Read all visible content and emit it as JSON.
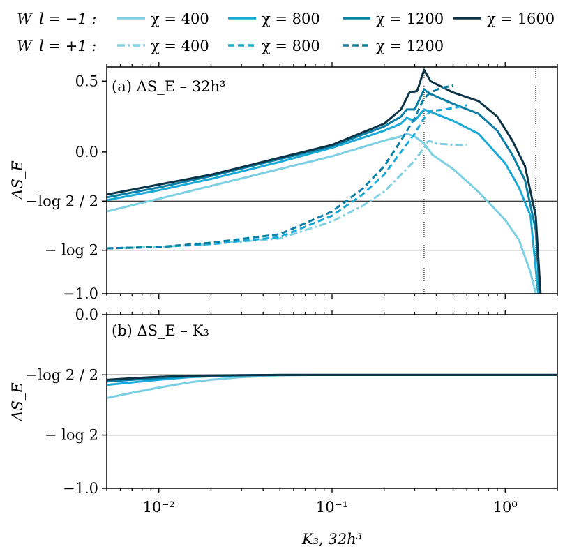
{
  "legend": {
    "rows": [
      {
        "label": "W_l = −1 :",
        "style": "solid"
      },
      {
        "label": "W_l = +1 :",
        "style": "dashed"
      }
    ],
    "entries": [
      {
        "row": 0,
        "text": "χ = 400",
        "color": "#7dd0e4",
        "dash": "solid"
      },
      {
        "row": 0,
        "text": "χ = 800",
        "color": "#19aad8",
        "dash": "solid"
      },
      {
        "row": 0,
        "text": "χ = 1200",
        "color": "#0a7ea4",
        "dash": "solid"
      },
      {
        "row": 0,
        "text": "χ = 1600",
        "color": "#0c3346",
        "dash": "solid"
      },
      {
        "row": 1,
        "text": "χ = 400",
        "color": "#7dd0e4",
        "dash": "dashdot"
      },
      {
        "row": 1,
        "text": "χ = 800",
        "color": "#19aad8",
        "dash": "dashed"
      },
      {
        "row": 1,
        "text": "χ = 1200",
        "color": "#0a7ea4",
        "dash": "dashed"
      }
    ]
  },
  "chart_data": [
    {
      "type": "line",
      "panel_label": "(a) ΔS_E – 32h³",
      "ylabel": "ΔS_E",
      "xscale": "log",
      "xlim": [
        0.005,
        2.0
      ],
      "ylim": [
        -1.0,
        0.6
      ],
      "yticks": [
        {
          "value": 0.5,
          "label": "0.5"
        },
        {
          "value": 0.0,
          "label": "0.0"
        },
        {
          "value": -0.3466,
          "label": "−log 2 / 2"
        },
        {
          "value": -0.6931,
          "label": "− log 2"
        },
        {
          "value": -1.0,
          "label": "−1.0"
        }
      ],
      "hlines": [
        -0.3466,
        -0.6931
      ],
      "vlines": [
        0.34,
        1.5
      ],
      "series": [
        {
          "name": "W_l = −1, χ = 400",
          "color": "#7dd0e4",
          "dash": "solid",
          "x": [
            0.005,
            0.01,
            0.02,
            0.05,
            0.1,
            0.2,
            0.25,
            0.27,
            0.3,
            0.34,
            0.38,
            0.5,
            0.7,
            1.0,
            1.2,
            1.4,
            1.5
          ],
          "y": [
            -0.42,
            -0.33,
            -0.24,
            -0.12,
            -0.03,
            0.08,
            0.11,
            0.13,
            0.11,
            0.06,
            -0.02,
            -0.12,
            -0.28,
            -0.48,
            -0.62,
            -0.85,
            -1.0
          ]
        },
        {
          "name": "W_l = −1, χ = 800",
          "color": "#19aad8",
          "dash": "solid",
          "x": [
            0.005,
            0.01,
            0.02,
            0.05,
            0.1,
            0.2,
            0.25,
            0.27,
            0.3,
            0.34,
            0.36,
            0.5,
            0.7,
            1.0,
            1.2,
            1.4,
            1.55
          ],
          "y": [
            -0.34,
            -0.27,
            -0.19,
            -0.07,
            0.03,
            0.15,
            0.2,
            0.24,
            0.22,
            0.3,
            0.29,
            0.22,
            0.13,
            -0.08,
            -0.25,
            -0.45,
            -1.0
          ]
        },
        {
          "name": "W_l = −1, χ = 1200",
          "color": "#0a7ea4",
          "dash": "solid",
          "x": [
            0.005,
            0.01,
            0.02,
            0.05,
            0.1,
            0.2,
            0.25,
            0.27,
            0.3,
            0.34,
            0.37,
            0.5,
            0.7,
            0.9,
            1.1,
            1.3,
            1.5,
            1.58
          ],
          "y": [
            -0.32,
            -0.25,
            -0.17,
            -0.05,
            0.04,
            0.18,
            0.25,
            0.3,
            0.3,
            0.44,
            0.41,
            0.34,
            0.27,
            0.15,
            -0.02,
            -0.2,
            -0.55,
            -1.0
          ]
        },
        {
          "name": "W_l = −1, χ = 1600",
          "color": "#0c3346",
          "dash": "solid",
          "x": [
            0.005,
            0.01,
            0.02,
            0.05,
            0.1,
            0.2,
            0.25,
            0.28,
            0.31,
            0.34,
            0.37,
            0.5,
            0.7,
            0.9,
            1.1,
            1.3,
            1.5,
            1.6
          ],
          "y": [
            -0.3,
            -0.23,
            -0.16,
            -0.04,
            0.05,
            0.2,
            0.3,
            0.42,
            0.43,
            0.58,
            0.5,
            0.42,
            0.36,
            0.25,
            0.08,
            -0.1,
            -0.45,
            -1.0
          ]
        },
        {
          "name": "W_l = +1, χ = 400",
          "color": "#7dd0e4",
          "dash": "dashdot",
          "x": [
            0.005,
            0.01,
            0.02,
            0.05,
            0.1,
            0.15,
            0.2,
            0.25,
            0.3,
            0.34,
            0.36,
            0.4,
            0.5,
            0.6
          ],
          "y": [
            -0.68,
            -0.67,
            -0.65,
            -0.61,
            -0.49,
            -0.38,
            -0.28,
            -0.16,
            -0.06,
            0.03,
            0.08,
            0.06,
            0.05,
            0.05
          ]
        },
        {
          "name": "W_l = +1, χ = 800",
          "color": "#19aad8",
          "dash": "dashed",
          "x": [
            0.005,
            0.01,
            0.02,
            0.05,
            0.1,
            0.15,
            0.2,
            0.25,
            0.3,
            0.34,
            0.37,
            0.45,
            0.55,
            0.6
          ],
          "y": [
            -0.68,
            -0.67,
            -0.65,
            -0.6,
            -0.45,
            -0.3,
            -0.16,
            0.0,
            0.13,
            0.24,
            0.29,
            0.3,
            0.32,
            0.33
          ]
        },
        {
          "name": "W_l = +1, χ = 1200",
          "color": "#0a7ea4",
          "dash": "dashed",
          "x": [
            0.005,
            0.01,
            0.02,
            0.05,
            0.1,
            0.15,
            0.2,
            0.25,
            0.3,
            0.34,
            0.37,
            0.42,
            0.5
          ],
          "y": [
            -0.68,
            -0.67,
            -0.64,
            -0.58,
            -0.42,
            -0.26,
            -0.1,
            0.08,
            0.24,
            0.38,
            0.42,
            0.45,
            0.47
          ]
        }
      ]
    },
    {
      "type": "line",
      "panel_label": "(b) ΔS_E – K₃",
      "ylabel": "ΔS_E",
      "xlabel": "K₃, 32h³",
      "xscale": "log",
      "xlim": [
        0.005,
        2.0
      ],
      "ylim": [
        -1.0,
        0.0
      ],
      "xticks": [
        {
          "value": 0.01,
          "label": "10⁻²"
        },
        {
          "value": 0.1,
          "label": "10⁻¹"
        },
        {
          "value": 1.0,
          "label": "10⁰"
        }
      ],
      "yticks": [
        {
          "value": 0.0,
          "label": "0.0"
        },
        {
          "value": -0.3466,
          "label": "−log 2 / 2"
        },
        {
          "value": -0.6931,
          "label": "− log 2"
        },
        {
          "value": -1.0,
          "label": "−1.0"
        }
      ],
      "hlines": [
        -0.3466,
        -0.6931
      ],
      "series": [
        {
          "name": "W_l = −1, χ = 400",
          "color": "#7dd0e4",
          "dash": "solid",
          "x": [
            0.005,
            0.007,
            0.01,
            0.015,
            0.02,
            0.03,
            0.05,
            0.08,
            0.1,
            0.2,
            0.5,
            1.0,
            2.0
          ],
          "y": [
            -0.48,
            -0.45,
            -0.42,
            -0.39,
            -0.375,
            -0.36,
            -0.35,
            -0.347,
            -0.347,
            -0.347,
            -0.347,
            -0.347,
            -0.347
          ]
        },
        {
          "name": "W_l = −1, χ = 800",
          "color": "#19aad8",
          "dash": "solid",
          "x": [
            0.005,
            0.007,
            0.01,
            0.015,
            0.02,
            0.03,
            0.05,
            0.1,
            0.5,
            2.0
          ],
          "y": [
            -0.405,
            -0.39,
            -0.375,
            -0.36,
            -0.355,
            -0.35,
            -0.347,
            -0.347,
            -0.347,
            -0.347
          ]
        },
        {
          "name": "W_l = −1, χ = 1200",
          "color": "#0a7ea4",
          "dash": "solid",
          "x": [
            0.005,
            0.007,
            0.01,
            0.015,
            0.02,
            0.03,
            0.05,
            0.1,
            0.5,
            2.0
          ],
          "y": [
            -0.385,
            -0.375,
            -0.365,
            -0.355,
            -0.352,
            -0.349,
            -0.347,
            -0.347,
            -0.347,
            -0.347
          ]
        },
        {
          "name": "W_l = −1, χ = 1600",
          "color": "#0c3346",
          "dash": "solid",
          "x": [
            0.005,
            0.007,
            0.01,
            0.015,
            0.02,
            0.03,
            0.05,
            0.1,
            0.5,
            2.0
          ],
          "y": [
            -0.375,
            -0.366,
            -0.358,
            -0.352,
            -0.35,
            -0.348,
            -0.347,
            -0.347,
            -0.347,
            -0.347
          ]
        }
      ]
    }
  ]
}
